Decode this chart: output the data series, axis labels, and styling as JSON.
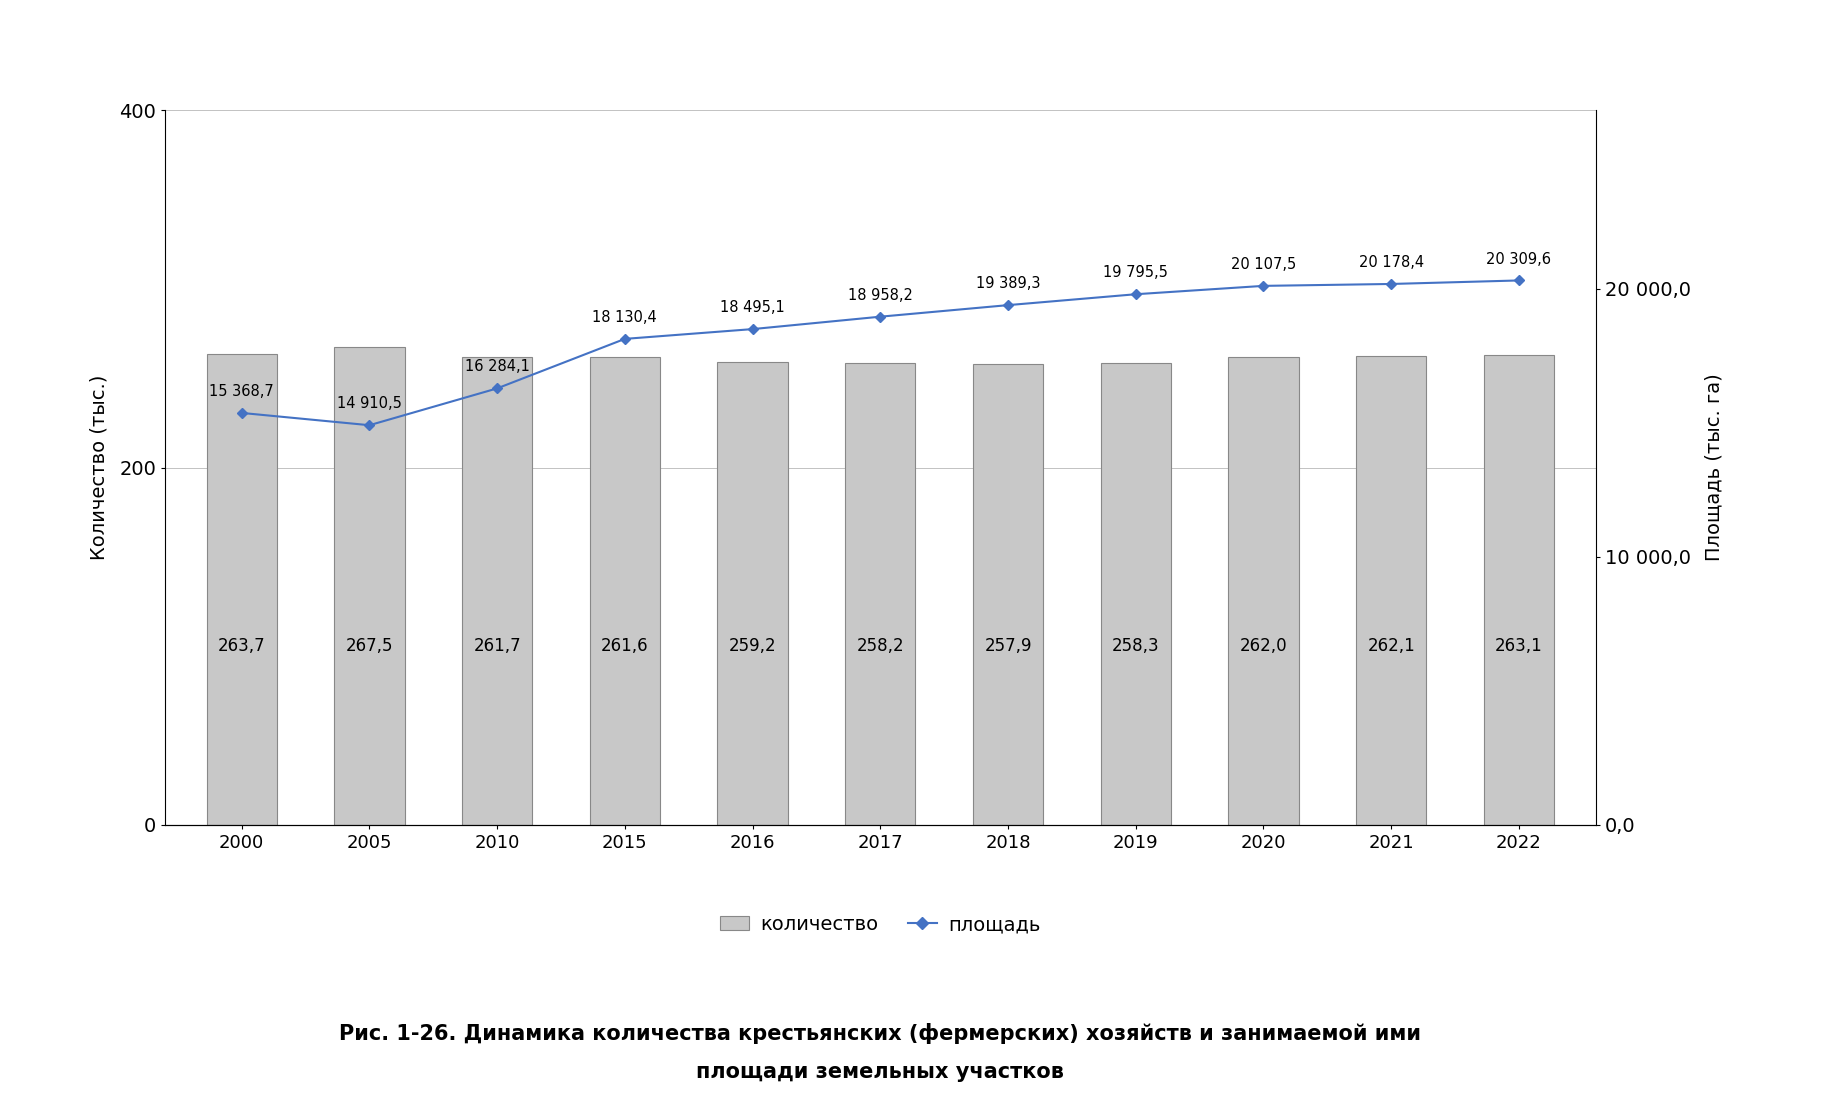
{
  "years": [
    2000,
    2005,
    2010,
    2015,
    2016,
    2017,
    2018,
    2019,
    2020,
    2021,
    2022
  ],
  "quantity": [
    263.7,
    267.5,
    261.7,
    261.6,
    259.2,
    258.2,
    257.9,
    258.3,
    262.0,
    262.1,
    263.1
  ],
  "area": [
    15368.7,
    14910.5,
    16284.1,
    18130.4,
    18495.1,
    18958.2,
    19389.3,
    19795.5,
    20107.5,
    20178.4,
    20309.6
  ],
  "bar_color": "#c8c8c8",
  "bar_edgecolor": "#888888",
  "line_color": "#4472C4",
  "marker_color": "#4472C4",
  "ylabel_left": "Количество (тыс.)",
  "ylabel_right": "Площадь (тыс. га)",
  "ylim_left": [
    0,
    400
  ],
  "ylim_right": [
    0,
    26666.7
  ],
  "yticks_left": [
    0,
    200,
    400
  ],
  "yticks_right": [
    0.0,
    10000.0,
    20000.0
  ],
  "ytick_labels_right": [
    "0,0",
    "10 000,0",
    "20 000,0"
  ],
  "legend_quantity": "количество",
  "legend_area": "площадь",
  "caption": "Рис. 1-26. Динамика количества крестьянских (фермерских) хозяйств и занимаемой ими",
  "caption2": "площади земельных участков",
  "background_color": "#ffffff"
}
